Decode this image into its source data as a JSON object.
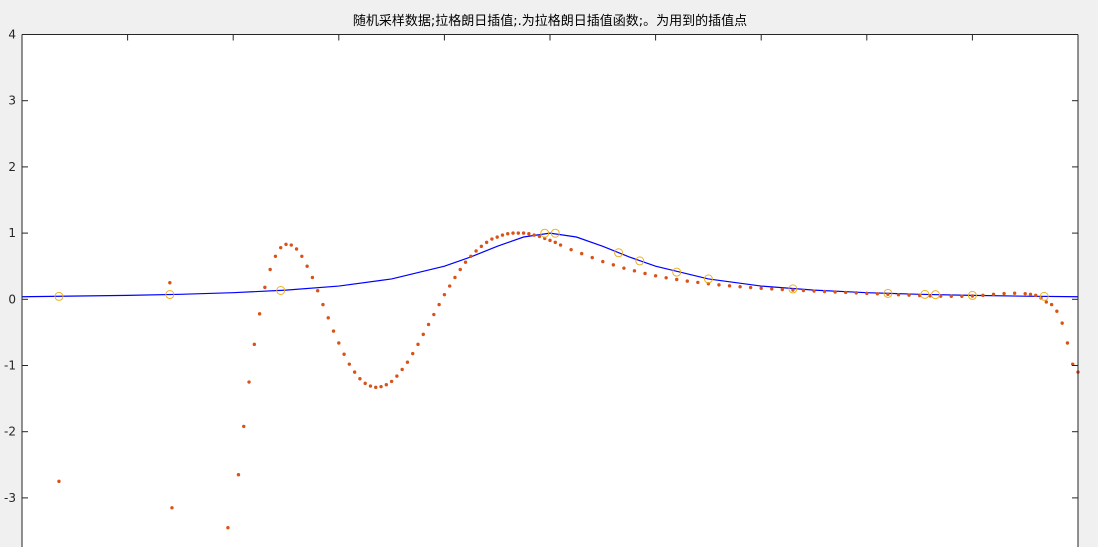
{
  "figure": {
    "title": "随机采样数据;拉格朗日插值;.为拉格朗日插值函数;。为用到的插值点"
  },
  "chart_data": {
    "type": "line",
    "title": "随机采样数据;拉格朗日插值;.为拉格朗日插值函数;。为用到的插值点",
    "xlabel": "",
    "ylabel": "",
    "xlim": [
      -5,
      5
    ],
    "ylim": [
      -3.5,
      4
    ],
    "yticks": [
      -3,
      -2,
      -1,
      0,
      1,
      2,
      3,
      4
    ],
    "ytick_labels": [
      "-3",
      "-2",
      "-1",
      "0",
      "1",
      "2",
      "3",
      "4"
    ],
    "series": [
      {
        "kind": "line",
        "color": "#0000ff",
        "x": [
          -5.0,
          -4.0,
          -3.5,
          -3.0,
          -2.5,
          -2.0,
          -1.5,
          -1.0,
          -0.75,
          -0.5,
          -0.25,
          0.0,
          0.25,
          0.5,
          0.75,
          1.0,
          1.5,
          2.0,
          2.5,
          3.0,
          3.5,
          4.0,
          4.5,
          5.0
        ],
        "y": [
          0.038,
          0.059,
          0.075,
          0.1,
          0.138,
          0.2,
          0.308,
          0.5,
          0.64,
          0.8,
          0.941,
          1.0,
          0.941,
          0.8,
          0.64,
          0.5,
          0.308,
          0.2,
          0.138,
          0.1,
          0.075,
          0.059,
          0.047,
          0.038
        ]
      },
      {
        "kind": "dotted",
        "color": "#d95319",
        "x": [
          -4.65,
          -3.6,
          -3.58,
          -3.05,
          -2.95,
          -2.9,
          -2.85,
          -2.8,
          -2.75,
          -2.7,
          -2.65,
          -2.6,
          -2.55,
          -2.5,
          -2.45,
          -2.4,
          -2.35,
          -2.3,
          -2.25,
          -2.2,
          -2.15,
          -2.1,
          -2.05,
          -2.0,
          -1.95,
          -1.9,
          -1.85,
          -1.8,
          -1.75,
          -1.7,
          -1.65,
          -1.6,
          -1.55,
          -1.5,
          -1.45,
          -1.4,
          -1.35,
          -1.3,
          -1.25,
          -1.2,
          -1.15,
          -1.1,
          -1.05,
          -1.0,
          -0.95,
          -0.9,
          -0.85,
          -0.8,
          -0.75,
          -0.7,
          -0.65,
          -0.6,
          -0.55,
          -0.5,
          -0.45,
          -0.4,
          -0.35,
          -0.3,
          -0.25,
          -0.2,
          -0.15,
          -0.1,
          -0.05,
          0.0,
          0.05,
          0.1,
          0.2,
          0.3,
          0.4,
          0.5,
          0.6,
          0.7,
          0.8,
          0.9,
          1.0,
          1.1,
          1.2,
          1.3,
          1.4,
          1.5,
          1.6,
          1.7,
          1.8,
          1.9,
          2.0,
          2.1,
          2.2,
          2.3,
          2.4,
          2.5,
          2.6,
          2.7,
          2.8,
          2.9,
          3.0,
          3.1,
          3.2,
          3.3,
          3.4,
          3.5,
          3.6,
          3.7,
          3.8,
          3.9,
          4.0,
          4.1,
          4.2,
          4.3,
          4.4,
          4.5,
          4.55,
          4.6,
          4.65,
          4.7,
          4.75,
          4.8,
          4.85,
          4.9,
          4.95,
          5.0
        ],
        "y": [
          -2.75,
          0.25,
          -3.15,
          -3.45,
          -2.65,
          -1.92,
          -1.25,
          -0.68,
          -0.22,
          0.18,
          0.45,
          0.65,
          0.78,
          0.83,
          0.82,
          0.76,
          0.65,
          0.5,
          0.33,
          0.13,
          -0.08,
          -0.28,
          -0.48,
          -0.66,
          -0.83,
          -0.98,
          -1.1,
          -1.2,
          -1.27,
          -1.31,
          -1.33,
          -1.32,
          -1.29,
          -1.24,
          -1.16,
          -1.06,
          -0.95,
          -0.82,
          -0.68,
          -0.53,
          -0.38,
          -0.23,
          -0.08,
          0.07,
          0.2,
          0.33,
          0.45,
          0.56,
          0.65,
          0.73,
          0.8,
          0.86,
          0.91,
          0.94,
          0.97,
          0.99,
          1.0,
          1.0,
          1.0,
          0.99,
          0.97,
          0.95,
          0.92,
          0.89,
          0.86,
          0.82,
          0.75,
          0.69,
          0.63,
          0.57,
          0.52,
          0.47,
          0.43,
          0.39,
          0.355,
          0.325,
          0.3,
          0.275,
          0.255,
          0.235,
          0.218,
          0.203,
          0.19,
          0.178,
          0.167,
          0.157,
          0.148,
          0.14,
          0.132,
          0.125,
          0.118,
          0.111,
          0.104,
          0.097,
          0.09,
          0.083,
          0.076,
          0.069,
          0.063,
          0.057,
          0.052,
          0.048,
          0.046,
          0.046,
          0.05,
          0.06,
          0.075,
          0.087,
          0.092,
          0.085,
          0.075,
          0.06,
          0.02,
          -0.04,
          -0.08,
          -0.18,
          -0.36,
          -0.66,
          -0.98,
          -1.1
        ]
      },
      {
        "kind": "markers",
        "marker": "circle",
        "color": "#edb120",
        "x": [
          -4.65,
          -3.6,
          -2.55,
          -0.05,
          0.05,
          0.65,
          0.85,
          1.2,
          1.5,
          2.3,
          3.2,
          3.55,
          3.65,
          4.0,
          4.68
        ],
        "y": [
          0.044,
          0.072,
          0.133,
          0.998,
          0.998,
          0.703,
          0.58,
          0.41,
          0.308,
          0.157,
          0.089,
          0.074,
          0.07,
          0.059,
          0.044
        ]
      }
    ]
  }
}
